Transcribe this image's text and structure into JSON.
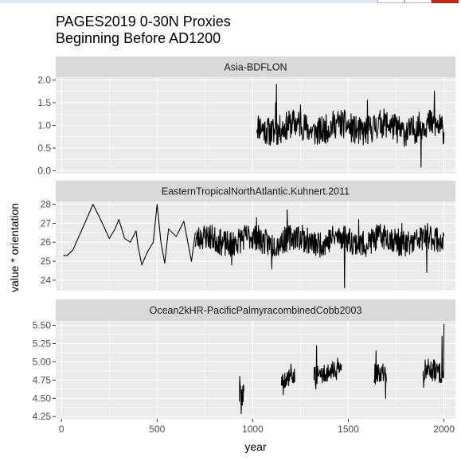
{
  "window": {
    "controls": [
      "minimize",
      "maximize",
      "close"
    ]
  },
  "chart_data": {
    "type": "line",
    "title_lines": [
      "PAGES2019 0-30N Proxies",
      "Beginning Before AD1200"
    ],
    "xlabel": "year",
    "ylabel": "value * orientation",
    "xlim": [
      -30,
      2060
    ],
    "x_ticks": [
      0,
      500,
      1000,
      1500,
      2000
    ],
    "grid": true,
    "legend": "none",
    "colors": {
      "panel_background": "#ebebeb",
      "grid_major": "#ffffff",
      "strip_background": "#d9d9d9",
      "line": "#000000"
    },
    "panels": [
      {
        "strip": "Asia-BDFLON",
        "ylim": [
          -0.06,
          2.06
        ],
        "y_ticks": [
          0.0,
          0.5,
          1.0,
          1.5,
          2.0
        ],
        "y_tick_labels": [
          "0.0",
          "0.5",
          "1.0",
          "1.5",
          "2.0"
        ],
        "series": [
          {
            "segments": [
              {
                "x_range": [
                  1020,
                  2000
                ],
                "baseline": 0.95,
                "amplitude": 0.32,
                "seed": 11,
                "spikes": [
                  [
                    1125,
                    1.9
                  ],
                  [
                    1120,
                    1.5
                  ],
                  [
                    1250,
                    1.45
                  ],
                  [
                    1880,
                    0.08
                  ],
                  [
                    1950,
                    1.75
                  ],
                  [
                    1600,
                    1.55
                  ]
                ]
              }
            ]
          }
        ]
      },
      {
        "strip": "EasternTropicalNorthAtlantic.Kuhnert.2011",
        "ylim": [
          23.45,
          28.15
        ],
        "y_ticks": [
          24,
          25,
          26,
          27,
          28
        ],
        "y_tick_labels": [
          "24",
          "25",
          "26",
          "27",
          "28"
        ],
        "series": [
          {
            "segments": [
              {
                "points": [
                  [
                    10,
                    25.3
                  ],
                  [
                    30,
                    25.3
                  ],
                  [
                    60,
                    25.6
                  ],
                  [
                    100,
                    26.5
                  ],
                  [
                    165,
                    28.0
                  ],
                  [
                    200,
                    27.3
                  ],
                  [
                    250,
                    26.2
                  ],
                  [
                    280,
                    26.7
                  ],
                  [
                    300,
                    27.2
                  ],
                  [
                    330,
                    26.2
                  ],
                  [
                    360,
                    26.0
                  ],
                  [
                    390,
                    26.6
                  ],
                  [
                    400,
                    25.8
                  ],
                  [
                    420,
                    24.8
                  ],
                  [
                    450,
                    25.5
                  ],
                  [
                    480,
                    26.0
                  ],
                  [
                    500,
                    28.0
                  ],
                  [
                    520,
                    26.0
                  ],
                  [
                    540,
                    24.9
                  ],
                  [
                    560,
                    26.7
                  ],
                  [
                    600,
                    26.3
                  ],
                  [
                    640,
                    27.1
                  ],
                  [
                    680,
                    25.0
                  ],
                  [
                    700,
                    26.5
                  ]
                ]
              },
              {
                "x_range": [
                  700,
                  2000
                ],
                "baseline": 26.1,
                "amplitude": 0.7,
                "seed": 23,
                "spikes": [
                  [
                    890,
                    24.8
                  ],
                  [
                    1020,
                    27.3
                  ],
                  [
                    1100,
                    24.6
                  ],
                  [
                    1180,
                    27.7
                  ],
                  [
                    1260,
                    26.9
                  ],
                  [
                    1480,
                    23.6
                  ],
                  [
                    1555,
                    27.2
                  ],
                  [
                    1780,
                    27.0
                  ],
                  [
                    1910,
                    24.4
                  ]
                ]
              }
            ]
          }
        ]
      },
      {
        "strip": "Ocean2kHR-PacificPalmyracombinedCobb2003",
        "ylim": [
          4.22,
          5.56
        ],
        "y_ticks": [
          4.25,
          4.5,
          4.75,
          5.0,
          5.25,
          5.5
        ],
        "y_tick_labels": [
          "4.25",
          "4.50",
          "4.75",
          "5.00",
          "5.25",
          "5.50"
        ],
        "series": [
          {
            "segments": [
              {
                "x_range": [
                  930,
                  955
                ],
                "baseline": 4.55,
                "amplitude": 0.18,
                "seed": 3,
                "spikes": [
                  [
                    940,
                    4.29
                  ],
                  [
                    932,
                    4.8
                  ]
                ]
              },
              {
                "x_range": [
                  1150,
                  1220
                ],
                "baseline": 4.75,
                "amplitude": 0.12,
                "seed": 5,
                "spikes": [
                  [
                    1200,
                    4.97
                  ],
                  [
                    1160,
                    4.55
                  ]
                ]
              },
              {
                "x_range": [
                  1320,
                  1465
                ],
                "baseline": 4.85,
                "amplitude": 0.13,
                "seed": 7,
                "spikes": [
                  [
                    1335,
                    5.22
                  ],
                  [
                    1445,
                    5.05
                  ],
                  [
                    1330,
                    4.63
                  ]
                ]
              },
              {
                "x_range": [
                  1635,
                  1700
                ],
                "baseline": 4.82,
                "amplitude": 0.14,
                "seed": 9,
                "spikes": [
                  [
                    1645,
                    5.15
                  ],
                  [
                    1695,
                    4.5
                  ]
                ]
              },
              {
                "x_range": [
                  1890,
                  2000
                ],
                "baseline": 4.85,
                "amplitude": 0.15,
                "seed": 13,
                "spikes": [
                  [
                    2000,
                    5.52
                  ],
                  [
                    1990,
                    5.35
                  ],
                  [
                    1895,
                    4.65
                  ]
                ]
              }
            ]
          }
        ]
      }
    ]
  }
}
